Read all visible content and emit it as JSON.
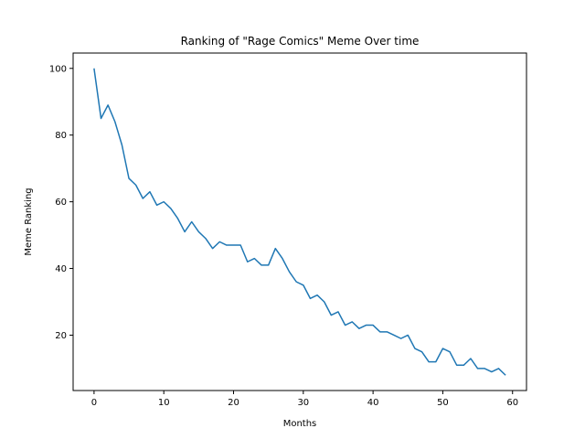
{
  "chart_data": {
    "type": "line",
    "title": "Ranking of \"Rage Comics\" Meme Over time",
    "xlabel": "Months",
    "ylabel": "Meme Ranking",
    "xlim": [
      -3,
      62
    ],
    "ylim": [
      3.4,
      104.6
    ],
    "xticks": [
      0,
      10,
      20,
      30,
      40,
      50,
      60
    ],
    "yticks": [
      20,
      40,
      60,
      80,
      100
    ],
    "grid": false,
    "line_color": "#1f77b4",
    "series": [
      {
        "x": [
          0,
          1,
          2,
          3,
          4,
          5,
          6,
          7,
          8,
          9,
          10,
          11,
          12,
          13,
          14,
          15,
          16,
          17,
          18,
          19,
          20,
          21,
          22,
          23,
          24,
          25,
          26,
          27,
          28,
          29,
          30,
          31,
          32,
          33,
          34,
          35,
          36,
          37,
          38,
          39,
          40,
          41,
          42,
          43,
          44,
          45,
          46,
          47,
          48,
          49,
          50,
          51,
          52,
          53,
          54,
          55,
          56,
          57,
          58,
          59
        ],
        "values": [
          100,
          85,
          89,
          84,
          77,
          67,
          65,
          61,
          63,
          59,
          60,
          58,
          55,
          51,
          54,
          51,
          49,
          46,
          48,
          47,
          47,
          47,
          42,
          43,
          41,
          41,
          46,
          43,
          39,
          36,
          35,
          31,
          32,
          30,
          26,
          27,
          23,
          24,
          22,
          23,
          23,
          21,
          21,
          20,
          19,
          20,
          16,
          15,
          12,
          12,
          16,
          15,
          11,
          11,
          13,
          10,
          10,
          9,
          10,
          8
        ]
      }
    ]
  }
}
